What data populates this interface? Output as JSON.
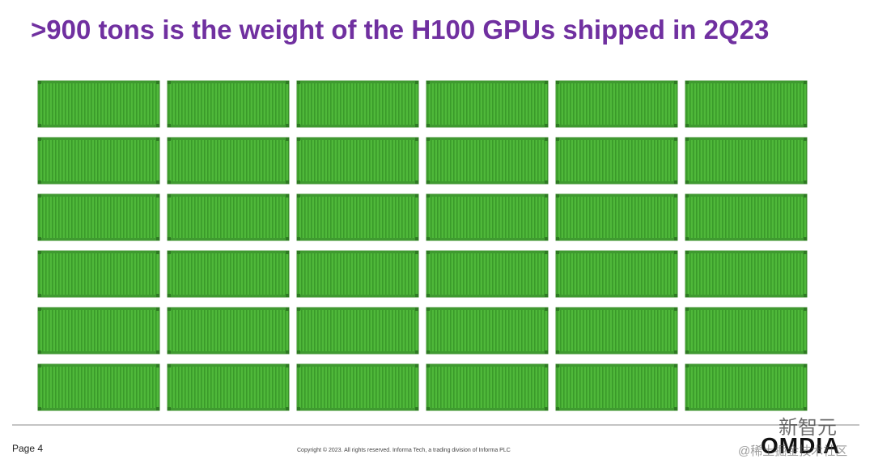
{
  "title": ">900 tons is the weight of the H100 GPUs shipped in 2Q23",
  "footer": {
    "page": "Page 4",
    "copyright": "Copyright © 2023. All rights reserved. Informa Tech, a trading division of Informa PLC",
    "logo": "OMDIA"
  },
  "watermark": {
    "brand": "新智元",
    "source": "@稀土掘金技术社区"
  }
}
